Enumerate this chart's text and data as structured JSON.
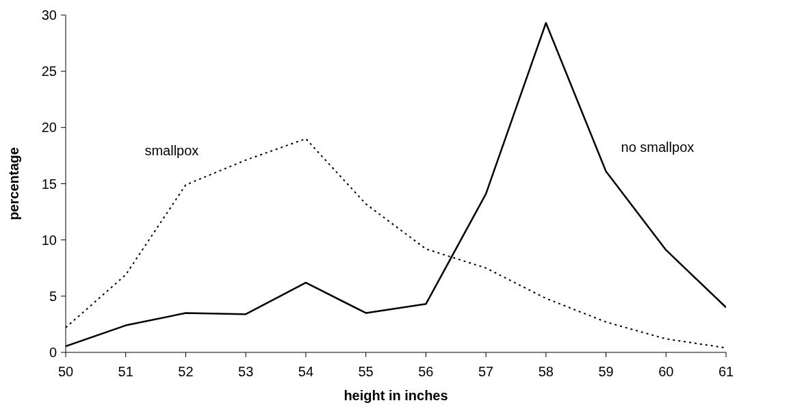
{
  "chart_data": {
    "type": "line",
    "xlabel": "height in inches",
    "ylabel": "percentage",
    "x": [
      50,
      51,
      52,
      53,
      54,
      55,
      56,
      57,
      58,
      59,
      60,
      61
    ],
    "series": [
      {
        "name": "no smallpox",
        "color": "#000000",
        "line_style": "solid",
        "values": [
          0.55,
          2.4,
          3.5,
          3.4,
          6.2,
          3.5,
          4.3,
          14.1,
          29.3,
          16.1,
          9.1,
          4.0
        ]
      },
      {
        "name": "smallpox",
        "color": "#000000",
        "line_style": "dotted",
        "values": [
          2.2,
          6.9,
          14.9,
          17.1,
          19.0,
          13.2,
          9.2,
          7.5,
          4.8,
          2.7,
          1.2,
          0.4
        ]
      }
    ],
    "xlim": [
      50,
      61
    ],
    "xticks": [
      50,
      51,
      52,
      53,
      54,
      55,
      56,
      57,
      58,
      59,
      60,
      61
    ],
    "ylim": [
      0,
      30
    ],
    "yticks": [
      0,
      5,
      10,
      15,
      20,
      25,
      30
    ],
    "grid": false,
    "legend": false,
    "marker": "none"
  }
}
